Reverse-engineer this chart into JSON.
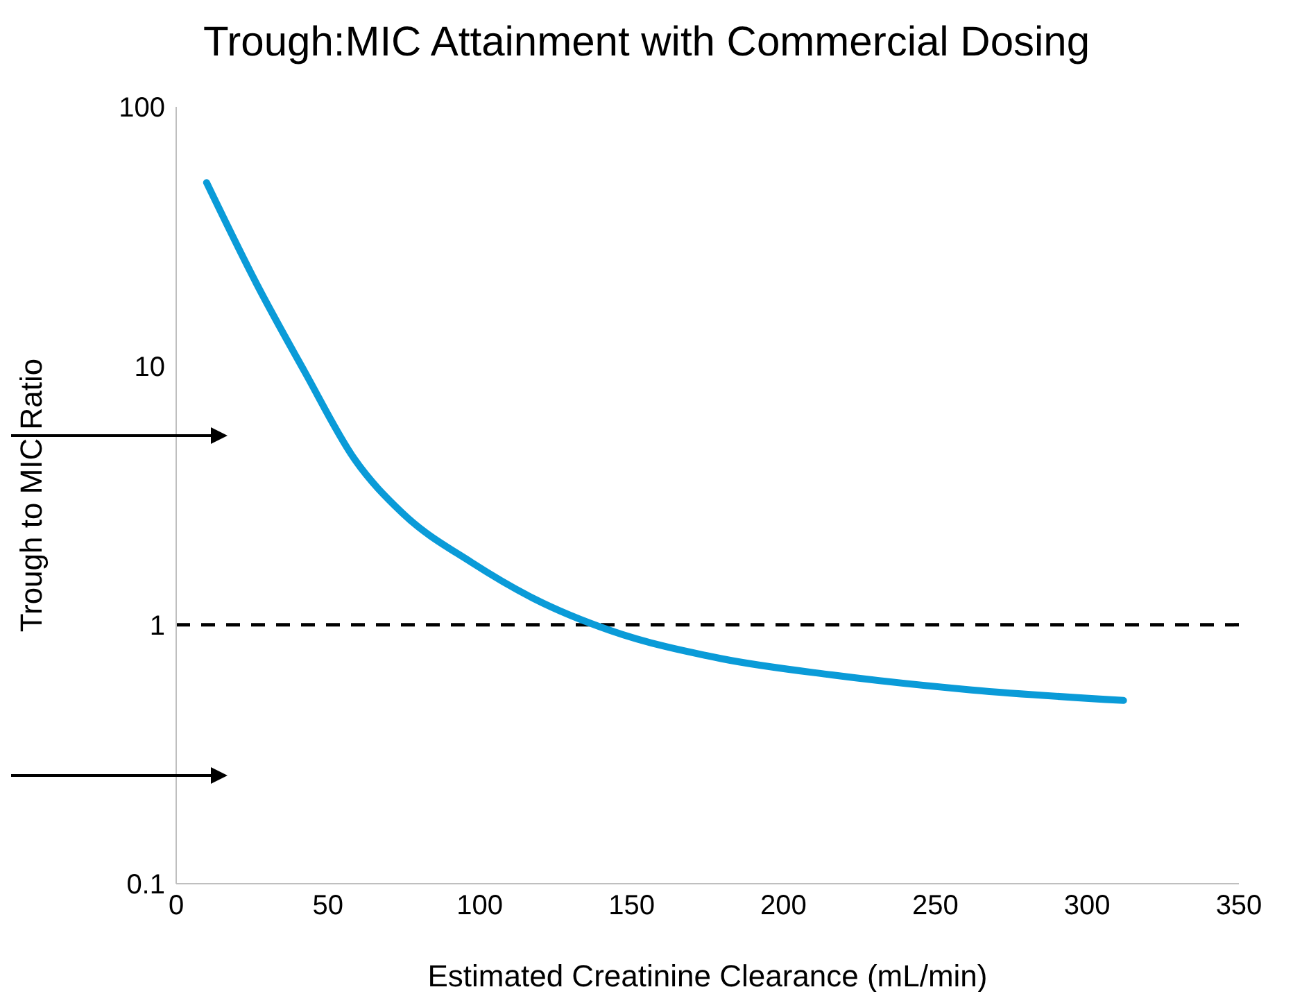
{
  "chart_data": {
    "type": "line",
    "title": "Trough:MIC Attainment with Commercial Dosing",
    "xlabel": "Estimated Creatinine Clearance (mL/min)",
    "ylabel": "Trough to MIC Ratio",
    "x": [
      10,
      26.5,
      42.5,
      58.5,
      74.5,
      97.3,
      117.9,
      143,
      179.5,
      216,
      262,
      312
    ],
    "series": [
      {
        "color": "#0a9bd8",
        "values": [
          51,
          20.7,
          9.4,
          4.4,
          2.7,
          1.74,
          1.26,
          0.95,
          0.74,
          0.64,
          0.56,
          0.51
        ]
      }
    ],
    "xlim": [
      0,
      350
    ],
    "xticks": [
      0,
      50,
      100,
      150,
      200,
      250,
      300,
      350
    ],
    "ylim": [
      0.1,
      100
    ],
    "yticks": [
      0.1,
      1,
      10,
      100
    ],
    "log": "y",
    "grid": false,
    "legend": false,
    "marker": "none",
    "line_style": "solid",
    "ref_lines": [
      {
        "axis": "y",
        "value": 1,
        "color": "#000000",
        "line_style": "dashed"
      }
    ]
  }
}
